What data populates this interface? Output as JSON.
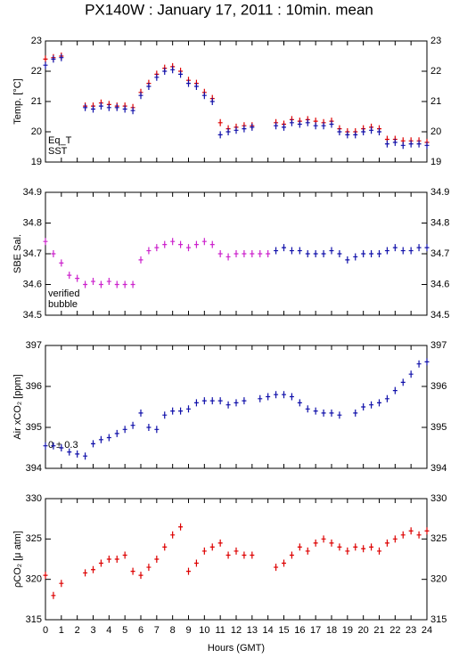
{
  "title": "PX140W : January 17, 2011 : 10min. mean",
  "chart_data": [
    {
      "type": "scatter",
      "y_label": "Temp. [°C]",
      "x": [
        0,
        0.5,
        1,
        1.5,
        2,
        2.5,
        3,
        3.5,
        4,
        4.5,
        5,
        5.5,
        6,
        6.5,
        7,
        7.5,
        8,
        8.5,
        9,
        9.5,
        10,
        10.5,
        11,
        11.5,
        12,
        12.5,
        13,
        13.5,
        14,
        14.5,
        15,
        15.5,
        16,
        16.5,
        17,
        17.5,
        18,
        18.5,
        19,
        19.5,
        20,
        20.5,
        21,
        21.5,
        22,
        22.5,
        23,
        23.5,
        24
      ],
      "series": [
        {
          "name": "Eq_T",
          "color": "#dd0000",
          "values": [
            22.4,
            22.45,
            22.5,
            null,
            null,
            20.85,
            20.85,
            20.95,
            20.9,
            20.85,
            20.85,
            20.8,
            21.3,
            21.6,
            21.9,
            22.1,
            22.15,
            22.0,
            21.7,
            21.6,
            21.3,
            21.1,
            20.3,
            20.1,
            20.15,
            20.2,
            20.2,
            null,
            null,
            20.3,
            20.25,
            20.4,
            20.35,
            20.4,
            20.35,
            20.3,
            20.35,
            20.1,
            20.0,
            20.0,
            20.1,
            20.15,
            20.1,
            19.75,
            19.75,
            19.7,
            19.7,
            19.7,
            19.65
          ]
        },
        {
          "name": "SST",
          "color": "#1010aa",
          "values": [
            22.2,
            22.4,
            22.45,
            null,
            null,
            20.8,
            20.75,
            20.85,
            20.8,
            20.8,
            20.75,
            20.7,
            21.2,
            21.5,
            21.8,
            22.0,
            22.05,
            21.9,
            21.6,
            21.5,
            21.2,
            21.0,
            19.9,
            20.0,
            20.05,
            20.1,
            20.15,
            null,
            null,
            20.2,
            20.15,
            20.3,
            20.25,
            20.3,
            20.2,
            20.2,
            20.25,
            20.0,
            19.9,
            19.9,
            20.0,
            20.05,
            20.0,
            19.6,
            19.65,
            19.55,
            19.6,
            19.6,
            19.55
          ]
        }
      ],
      "xlim": [
        0,
        24
      ],
      "xticks": [
        0,
        1,
        2,
        3,
        4,
        5,
        6,
        7,
        8,
        9,
        10,
        11,
        12,
        13,
        14,
        15,
        16,
        17,
        18,
        19,
        20,
        21,
        22,
        23,
        24
      ],
      "ylim": [
        19,
        23
      ],
      "yticks": [
        19,
        20,
        21,
        22,
        23
      ]
    },
    {
      "type": "scatter",
      "y_label": "SBE Sal.",
      "series": [
        {
          "name": "verified",
          "color": "#1010aa",
          "x": [
            14.5,
            15,
            15.5,
            16,
            16.5,
            17,
            17.5,
            18,
            18.5,
            19,
            19.5,
            20,
            20.5,
            21,
            21.5,
            22,
            22.5,
            23,
            23.5,
            24
          ],
          "values": [
            34.71,
            34.72,
            34.71,
            34.71,
            34.7,
            34.7,
            34.7,
            34.71,
            34.7,
            34.68,
            34.69,
            34.7,
            34.7,
            34.7,
            34.71,
            34.72,
            34.71,
            34.71,
            34.72,
            34.72
          ]
        },
        {
          "name": "bubble",
          "color": "#cc22cc",
          "x": [
            0,
            0.5,
            1,
            1.5,
            2,
            2.5,
            3,
            3.5,
            4,
            4.5,
            5,
            5.5,
            6,
            6.5,
            7,
            7.5,
            8,
            8.5,
            9,
            9.5,
            10,
            10.5,
            11,
            11.5,
            12,
            12.5,
            13,
            13.5,
            14
          ],
          "values": [
            34.74,
            34.7,
            34.67,
            34.63,
            34.62,
            34.6,
            34.61,
            34.6,
            34.61,
            34.6,
            34.6,
            34.6,
            34.68,
            34.71,
            34.72,
            34.73,
            34.74,
            34.73,
            34.72,
            34.73,
            34.74,
            34.73,
            34.7,
            34.69,
            34.7,
            34.7,
            34.7,
            34.7,
            34.7
          ]
        }
      ],
      "xlim": [
        0,
        24
      ],
      "xticks": [
        0,
        1,
        2,
        3,
        4,
        5,
        6,
        7,
        8,
        9,
        10,
        11,
        12,
        13,
        14,
        15,
        16,
        17,
        18,
        19,
        20,
        21,
        22,
        23,
        24
      ],
      "ylim": [
        34.5,
        34.9
      ],
      "yticks": [
        34.5,
        34.6,
        34.7,
        34.8,
        34.9
      ]
    },
    {
      "type": "scatter",
      "y_label": "Air xCO₂ [ppm]",
      "annotation": "0 ± 0.3",
      "annotation_color": "#cc22cc",
      "x": [
        0,
        0.5,
        1,
        1.5,
        2,
        2.5,
        3,
        3.5,
        4,
        4.5,
        5,
        5.5,
        6,
        6.5,
        7,
        7.5,
        8,
        8.5,
        9,
        9.5,
        10,
        10.5,
        11,
        11.5,
        12,
        12.5,
        13,
        13.5,
        14,
        14.5,
        15,
        15.5,
        16,
        16.5,
        17,
        17.5,
        18,
        18.5,
        19,
        19.5,
        20,
        20.5,
        21,
        21.5,
        22,
        22.5,
        23,
        23.5,
        24
      ],
      "series": [
        {
          "color": "#1010aa",
          "values": [
            394.55,
            394.55,
            394.5,
            394.4,
            394.35,
            394.3,
            394.6,
            394.7,
            394.75,
            394.85,
            394.95,
            395.05,
            395.35,
            395.0,
            394.95,
            395.3,
            395.4,
            395.4,
            395.45,
            395.6,
            395.65,
            395.65,
            395.65,
            395.55,
            395.6,
            395.65,
            null,
            395.7,
            395.75,
            395.8,
            395.8,
            395.75,
            395.6,
            395.45,
            395.4,
            395.35,
            395.35,
            395.3,
            null,
            395.35,
            395.5,
            395.55,
            395.6,
            395.7,
            395.9,
            396.1,
            396.3,
            396.55,
            396.6
          ]
        }
      ],
      "xlim": [
        0,
        24
      ],
      "xticks": [
        0,
        1,
        2,
        3,
        4,
        5,
        6,
        7,
        8,
        9,
        10,
        11,
        12,
        13,
        14,
        15,
        16,
        17,
        18,
        19,
        20,
        21,
        22,
        23,
        24
      ],
      "ylim": [
        394,
        397
      ],
      "yticks": [
        394,
        395,
        396,
        397
      ]
    },
    {
      "type": "scatter",
      "y_label": "ρCO₂ [μ atm]",
      "x_label": "Hours (GMT)",
      "x": [
        0,
        0.5,
        1,
        1.5,
        2,
        2.5,
        3,
        3.5,
        4,
        4.5,
        5,
        5.5,
        6,
        6.5,
        7,
        7.5,
        8,
        8.5,
        9,
        9.5,
        10,
        10.5,
        11,
        11.5,
        12,
        12.5,
        13,
        13.5,
        14,
        14.5,
        15,
        15.5,
        16,
        16.5,
        17,
        17.5,
        18,
        18.5,
        19,
        19.5,
        20,
        20.5,
        21,
        21.5,
        22,
        22.5,
        23,
        23.5,
        24
      ],
      "series": [
        {
          "color": "#dd0000",
          "values": [
            320.5,
            318,
            319.5,
            null,
            null,
            320.8,
            321.2,
            322,
            322.5,
            322.5,
            323,
            321,
            320.5,
            321.5,
            322.5,
            324,
            325.5,
            326.5,
            321,
            322,
            323.5,
            324,
            324.5,
            323,
            323.5,
            323,
            323,
            null,
            null,
            321.5,
            322,
            323,
            324,
            323.5,
            324.5,
            325,
            324.5,
            324,
            323.5,
            324,
            323.8,
            324,
            323.5,
            324.5,
            325,
            325.5,
            326,
            325.5,
            326
          ]
        }
      ],
      "xlim": [
        0,
        24
      ],
      "xticks": [
        0,
        1,
        2,
        3,
        4,
        5,
        6,
        7,
        8,
        9,
        10,
        11,
        12,
        13,
        14,
        15,
        16,
        17,
        18,
        19,
        20,
        21,
        22,
        23,
        24
      ],
      "ylim": [
        315,
        330
      ],
      "yticks": [
        315,
        320,
        325,
        330
      ]
    }
  ]
}
